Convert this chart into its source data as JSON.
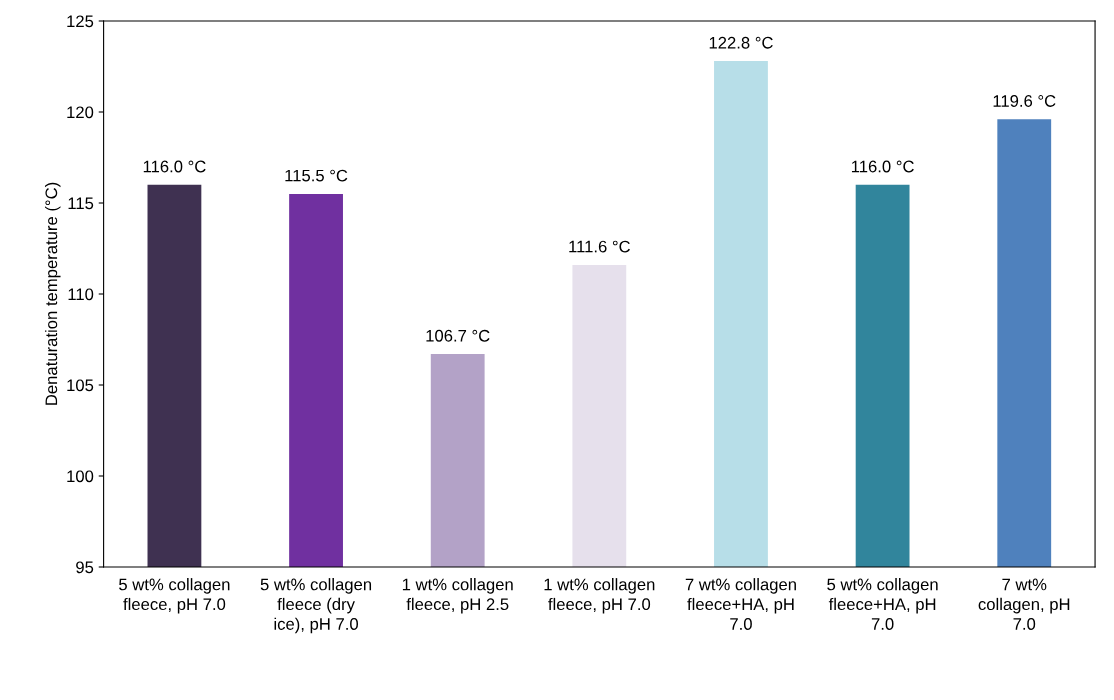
{
  "chart_data": {
    "type": "bar",
    "ylabel": "Denaturation temperature (°C)",
    "categories": [
      "5 wt% collagen fleece, pH 7.0",
      "5 wt% collagen fleece (dry ice), pH 7.0",
      "1 wt% collagen fleece, pH 2.5",
      "1 wt% collagen fleece, pH 7.0",
      "7 wt% collagen fleece+HA, pH 7.0",
      "5 wt% collagen fleece+HA, pH 7.0",
      "7 wt% collagen, pH 7.0"
    ],
    "values": [
      116.0,
      115.5,
      106.7,
      111.6,
      122.8,
      116.0,
      119.6
    ],
    "colors": [
      "#3f3151",
      "#7030a0",
      "#b3a2c7",
      "#e6e0ec",
      "#b7dee8",
      "#31859c",
      "#4f81bd"
    ],
    "value_labels": [
      "116.0 °C",
      "115.5 °C",
      "106.7 °C",
      "111.6 °C",
      "122.8 °C",
      "116.0 °C",
      "119.6 °C"
    ],
    "ylim": [
      95,
      125
    ],
    "yticks": [
      95,
      100,
      105,
      110,
      115,
      120,
      125
    ],
    "grid": false,
    "legend": false
  }
}
